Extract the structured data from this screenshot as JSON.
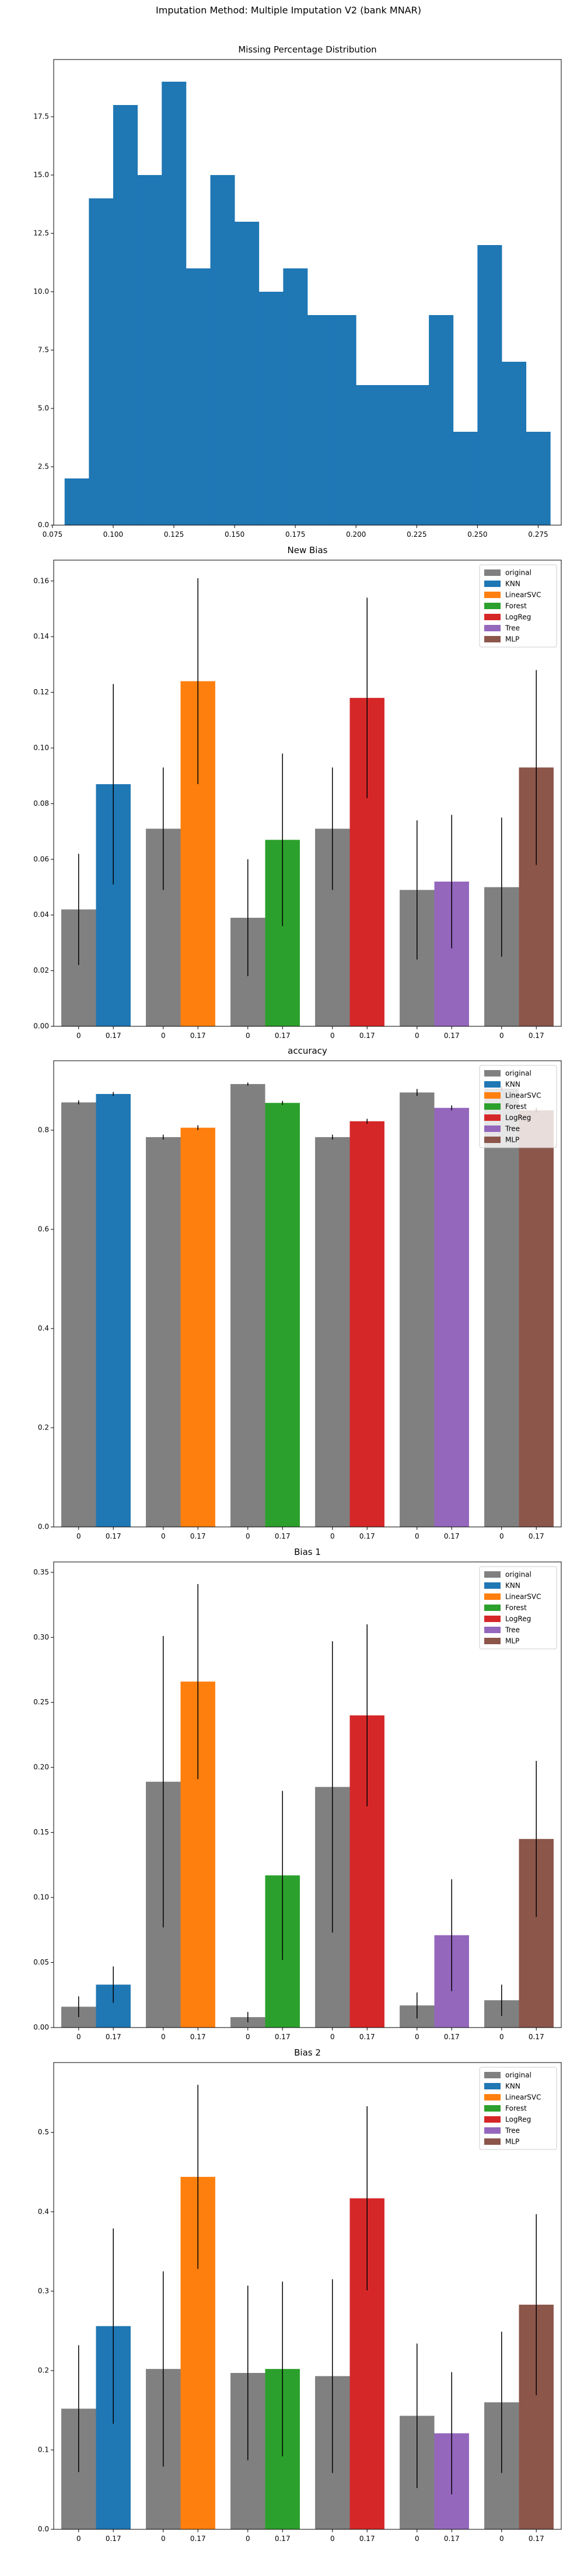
{
  "figure": {
    "suptitle": "Imputation Method: Multiple Imputation V2 (bank MNAR)"
  },
  "colors": {
    "original": "#808080",
    "KNN": "#1f77b4",
    "LinearSVC": "#ff7f0e",
    "Forest": "#2ca02c",
    "LogReg": "#d62728",
    "Tree": "#9467bd",
    "MLP": "#8c564b"
  },
  "chart_data": [
    {
      "type": "bar",
      "title": "Missing Percentage Distribution",
      "xlabel": "",
      "ylabel": "",
      "bin_edges": [
        0.08,
        0.09,
        0.1,
        0.11,
        0.12,
        0.13,
        0.14,
        0.15,
        0.16,
        0.17,
        0.18,
        0.19,
        0.2,
        0.21,
        0.22,
        0.23,
        0.24,
        0.25,
        0.26,
        0.27,
        0.28
      ],
      "counts": [
        2,
        14,
        18,
        15,
        19,
        11,
        15,
        13,
        10,
        11,
        9,
        9,
        6,
        6,
        6,
        9,
        4,
        12,
        7,
        4
      ],
      "xlim": [
        0.0755,
        0.2845
      ],
      "ylim": [
        0,
        19.95
      ],
      "xticks": [
        0.075,
        0.1,
        0.125,
        0.15,
        0.175,
        0.2,
        0.225,
        0.25,
        0.275
      ],
      "xtick_labels": [
        "0.075",
        "0.100",
        "0.125",
        "0.150",
        "0.175",
        "0.200",
        "0.225",
        "0.250",
        "0.275"
      ],
      "yticks": [
        0,
        2.5,
        5,
        7.5,
        10,
        12.5,
        15,
        17.5
      ],
      "ytick_labels": [
        "0.0",
        "2.5",
        "5.0",
        "7.5",
        "10.0",
        "12.5",
        "15.0",
        "17.5"
      ],
      "color": "#1f77b4",
      "grid": false
    },
    {
      "type": "bar",
      "title": "New Bias",
      "xlabel": "",
      "ylabel": "",
      "ylim": [
        0,
        0.1675
      ],
      "yticks": [
        0,
        0.02,
        0.04,
        0.06,
        0.08,
        0.1,
        0.12,
        0.14,
        0.16
      ],
      "ytick_labels": [
        "0.00",
        "0.02",
        "0.04",
        "0.06",
        "0.08",
        "0.10",
        "0.12",
        "0.14",
        "0.16"
      ],
      "tick_labels": [
        "0",
        "0.17"
      ],
      "legend": [
        "original",
        "KNN",
        "LinearSVC",
        "Forest",
        "LogReg",
        "Tree",
        "MLP"
      ],
      "legend_position": "top-right",
      "groups": [
        {
          "name": "KNN",
          "original": 0.042,
          "original_err": 0.02,
          "value": 0.087,
          "err": 0.036
        },
        {
          "name": "LinearSVC",
          "original": 0.071,
          "original_err": 0.022,
          "value": 0.124,
          "err": 0.037
        },
        {
          "name": "Forest",
          "original": 0.039,
          "original_err": 0.021,
          "value": 0.067,
          "err": 0.031
        },
        {
          "name": "LogReg",
          "original": 0.071,
          "original_err": 0.022,
          "value": 0.118,
          "err": 0.036
        },
        {
          "name": "Tree",
          "original": 0.049,
          "original_err": 0.025,
          "value": 0.052,
          "err": 0.024
        },
        {
          "name": "MLP",
          "original": 0.05,
          "original_err": 0.025,
          "value": 0.093,
          "err": 0.035
        }
      ]
    },
    {
      "type": "bar",
      "title": "accuracy",
      "xlabel": "",
      "ylabel": "",
      "ylim": [
        0,
        0.94
      ],
      "yticks": [
        0,
        0.2,
        0.4,
        0.6,
        0.8
      ],
      "ytick_labels": [
        "0.0",
        "0.2",
        "0.4",
        "0.6",
        "0.8"
      ],
      "tick_labels": [
        "0",
        "0.17"
      ],
      "legend": [
        "original",
        "KNN",
        "LinearSVC",
        "Forest",
        "LogReg",
        "Tree",
        "MLP"
      ],
      "legend_position": "top-right",
      "groups": [
        {
          "name": "KNN",
          "original": 0.856,
          "original_err": 0.004,
          "value": 0.873,
          "err": 0.004
        },
        {
          "name": "LinearSVC",
          "original": 0.786,
          "original_err": 0.005,
          "value": 0.805,
          "err": 0.005
        },
        {
          "name": "Forest",
          "original": 0.893,
          "original_err": 0.003,
          "value": 0.855,
          "err": 0.004
        },
        {
          "name": "LogReg",
          "original": 0.786,
          "original_err": 0.005,
          "value": 0.818,
          "err": 0.005
        },
        {
          "name": "Tree",
          "original": 0.876,
          "original_err": 0.007,
          "value": 0.845,
          "err": 0.005
        },
        {
          "name": "MLP",
          "original": 0.884,
          "original_err": 0.004,
          "value": 0.84,
          "err": 0.005
        }
      ]
    },
    {
      "type": "bar",
      "title": "Bias 1",
      "xlabel": "",
      "ylabel": "",
      "ylim": [
        0,
        0.358
      ],
      "yticks": [
        0,
        0.05,
        0.1,
        0.15,
        0.2,
        0.25,
        0.3,
        0.35
      ],
      "ytick_labels": [
        "0.00",
        "0.05",
        "0.10",
        "0.15",
        "0.20",
        "0.25",
        "0.30",
        "0.35"
      ],
      "tick_labels": [
        "0",
        "0.17"
      ],
      "legend": [
        "original",
        "KNN",
        "LinearSVC",
        "Forest",
        "LogReg",
        "Tree",
        "MLP"
      ],
      "legend_position": "top-right",
      "groups": [
        {
          "name": "KNN",
          "original": 0.016,
          "original_err": 0.008,
          "value": 0.033,
          "err": 0.014
        },
        {
          "name": "LinearSVC",
          "original": 0.189,
          "original_err": 0.112,
          "value": 0.266,
          "err": 0.075
        },
        {
          "name": "Forest",
          "original": 0.008,
          "original_err": 0.004,
          "value": 0.117,
          "err": 0.065
        },
        {
          "name": "LogReg",
          "original": 0.185,
          "original_err": 0.112,
          "value": 0.24,
          "err": 0.07
        },
        {
          "name": "Tree",
          "original": 0.017,
          "original_err": 0.01,
          "value": 0.071,
          "err": 0.043
        },
        {
          "name": "MLP",
          "original": 0.021,
          "original_err": 0.012,
          "value": 0.145,
          "err": 0.06
        }
      ]
    },
    {
      "type": "bar",
      "title": "Bias 2",
      "xlabel": "",
      "ylabel": "",
      "ylim": [
        0,
        0.588
      ],
      "yticks": [
        0,
        0.1,
        0.2,
        0.3,
        0.4,
        0.5
      ],
      "ytick_labels": [
        "0.0",
        "0.1",
        "0.2",
        "0.3",
        "0.4",
        "0.5"
      ],
      "tick_labels": [
        "0",
        "0.17"
      ],
      "legend": [
        "original",
        "KNN",
        "LinearSVC",
        "Forest",
        "LogReg",
        "Tree",
        "MLP"
      ],
      "legend_position": "top-right",
      "groups": [
        {
          "name": "KNN",
          "original": 0.152,
          "original_err": 0.08,
          "value": 0.256,
          "err": 0.123
        },
        {
          "name": "LinearSVC",
          "original": 0.202,
          "original_err": 0.123,
          "value": 0.444,
          "err": 0.116
        },
        {
          "name": "Forest",
          "original": 0.197,
          "original_err": 0.11,
          "value": 0.202,
          "err": 0.11
        },
        {
          "name": "LogReg",
          "original": 0.193,
          "original_err": 0.122,
          "value": 0.417,
          "err": 0.116
        },
        {
          "name": "Tree",
          "original": 0.143,
          "original_err": 0.091,
          "value": 0.121,
          "err": 0.077
        },
        {
          "name": "MLP",
          "original": 0.16,
          "original_err": 0.089,
          "value": 0.283,
          "err": 0.114
        }
      ]
    }
  ]
}
